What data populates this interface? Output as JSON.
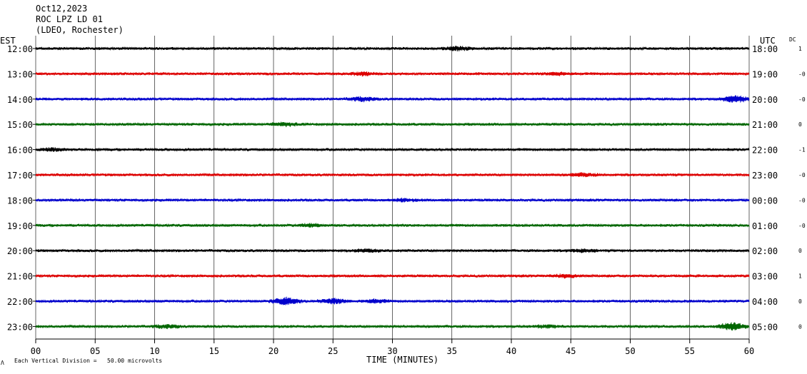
{
  "header": {
    "date": "Oct12,2023",
    "station": "ROC LPZ LD 01",
    "network": "(LDEO, Rochester)"
  },
  "left_axis_title": "EST",
  "right_axis_title": "UTC",
  "dc_title": "DC",
  "footer": {
    "scale_note": "Each Vertical Division =   50.00 microvolts",
    "corner_glyph": "Λ"
  },
  "colors": {
    "trace": [
      "#000000",
      "#dd0000",
      "#0000cc",
      "#006600"
    ],
    "grid": "#000000",
    "background": "#ffffff"
  },
  "chart_data": {
    "type": "line",
    "title": "ROC LPZ LD 01",
    "xlabel": "TIME (MINUTES)",
    "xlim": [
      0,
      60
    ],
    "x_ticks": [
      "00",
      "05",
      "10",
      "15",
      "20",
      "25",
      "30",
      "35",
      "40",
      "45",
      "50",
      "55",
      "60"
    ],
    "x_tick_values": [
      0,
      5,
      10,
      15,
      20,
      25,
      30,
      35,
      40,
      45,
      50,
      55,
      60
    ],
    "series": [
      {
        "est": "12:00",
        "utc": "18:00",
        "dc": "1",
        "bursts": [
          {
            "t": 35.5,
            "amp": 2.2
          }
        ]
      },
      {
        "est": "13:00",
        "utc": "19:00",
        "dc": "-0",
        "bursts": [
          {
            "t": 27.5,
            "amp": 1.8
          },
          {
            "t": 44.0,
            "amp": 1.6
          }
        ]
      },
      {
        "est": "14:00",
        "utc": "20:00",
        "dc": "-0",
        "bursts": [
          {
            "t": 27.5,
            "amp": 2.5
          },
          {
            "t": 58.8,
            "amp": 4.0
          }
        ]
      },
      {
        "est": "15:00",
        "utc": "21:00",
        "dc": "0",
        "bursts": [
          {
            "t": 21.0,
            "amp": 2.0
          }
        ]
      },
      {
        "est": "16:00",
        "utc": "22:00",
        "dc": "-1",
        "bursts": [
          {
            "t": 1.5,
            "amp": 1.8
          }
        ]
      },
      {
        "est": "17:00",
        "utc": "23:00",
        "dc": "-0",
        "bursts": [
          {
            "t": 46.0,
            "amp": 1.8
          }
        ]
      },
      {
        "est": "18:00",
        "utc": "00:00",
        "dc": "-0",
        "bursts": [
          {
            "t": 31.0,
            "amp": 1.5
          }
        ]
      },
      {
        "est": "19:00",
        "utc": "01:00",
        "dc": "-0",
        "bursts": [
          {
            "t": 23.0,
            "amp": 1.8
          }
        ]
      },
      {
        "est": "20:00",
        "utc": "02:00",
        "dc": "0",
        "bursts": [
          {
            "t": 28.0,
            "amp": 1.8
          },
          {
            "t": 46.0,
            "amp": 1.8
          }
        ]
      },
      {
        "est": "21:00",
        "utc": "03:00",
        "dc": "1",
        "bursts": [
          {
            "t": 44.5,
            "amp": 1.8
          }
        ]
      },
      {
        "est": "22:00",
        "utc": "04:00",
        "dc": "0",
        "bursts": [
          {
            "t": 21.0,
            "amp": 4.5
          },
          {
            "t": 25.0,
            "amp": 3.0
          },
          {
            "t": 28.5,
            "amp": 2.0
          }
        ]
      },
      {
        "est": "23:00",
        "utc": "05:00",
        "dc": "0",
        "bursts": [
          {
            "t": 11.0,
            "amp": 2.0
          },
          {
            "t": 43.0,
            "amp": 1.5
          },
          {
            "t": 58.5,
            "amp": 4.5
          }
        ]
      }
    ]
  }
}
